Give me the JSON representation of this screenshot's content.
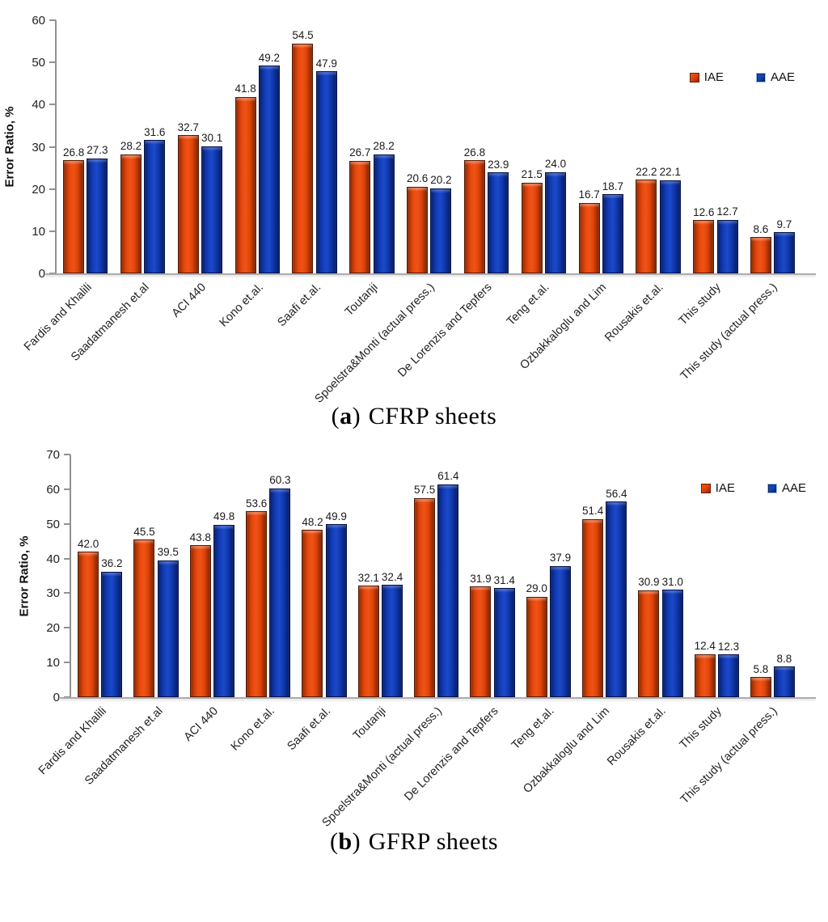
{
  "colors": {
    "iae": "#D8400C",
    "aae": "#1440A8",
    "axis": "#919191",
    "baseline": "#ABABAB",
    "label_text": "#1A1A1A"
  },
  "chart_data": [
    {
      "id": "cfrp",
      "type": "bar",
      "caption": {
        "open": "(",
        "letter": "a",
        "close": ")",
        "title": "CFRP sheets"
      },
      "ylabel": "Error Ratio, %",
      "ylim": [
        0,
        60
      ],
      "yticks": [
        0,
        10,
        20,
        30,
        40,
        50,
        60
      ],
      "grid": false,
      "legend_position": "upper-right",
      "categories": [
        "Fardis and Khalili",
        "Saadatmanesh et.al",
        "ACI 440",
        "Kono et.al.",
        "Saafi et.al.",
        "Toutanji",
        "Spoelstra&Monti (actual press.)",
        "De Lorenzis and Tepfers",
        "Teng et.al.",
        "Ozbakkaloglu and Lim",
        "Rousakis et.al.",
        "This study",
        "This study (actual press.)"
      ],
      "series": [
        {
          "name": "IAE",
          "color": "#D8400C",
          "values": [
            26.8,
            28.2,
            32.7,
            41.8,
            54.5,
            26.7,
            20.6,
            26.8,
            21.5,
            16.7,
            22.2,
            12.6,
            8.6
          ]
        },
        {
          "name": "AAE",
          "color": "#1440A8",
          "values": [
            27.3,
            31.6,
            30.1,
            49.2,
            47.9,
            28.2,
            20.2,
            23.9,
            24.0,
            18.7,
            22.1,
            12.7,
            9.7
          ]
        }
      ]
    },
    {
      "id": "gfrp",
      "type": "bar",
      "caption": {
        "open": "(",
        "letter": "b",
        "close": ")",
        "title": "GFRP sheets"
      },
      "ylabel": "Error Ratio, %",
      "ylim": [
        0,
        70
      ],
      "yticks": [
        0,
        10,
        20,
        30,
        40,
        50,
        60,
        70
      ],
      "grid": false,
      "legend_position": "upper-right",
      "categories": [
        "Fardis and Khalili",
        "Saadatmanesh et.al",
        "ACI 440",
        "Kono et.al.",
        "Saafi et.al.",
        "Toutanji",
        "Spoelstra&Monti (actual press.)",
        "De Lorenzis and Tepfers",
        "Teng et.al.",
        "Ozbakkaloglu and Lim",
        "Rousakis et.al.",
        "This study",
        "This study (actual press.)"
      ],
      "series": [
        {
          "name": "IAE",
          "color": "#D8400C",
          "values": [
            42.0,
            45.5,
            43.8,
            53.6,
            48.2,
            32.1,
            57.5,
            31.9,
            29.0,
            51.4,
            30.9,
            12.4,
            5.8
          ]
        },
        {
          "name": "AAE",
          "color": "#1440A8",
          "values": [
            36.2,
            39.5,
            49.8,
            60.3,
            49.9,
            32.4,
            61.4,
            31.4,
            37.9,
            56.4,
            31.0,
            12.3,
            8.8
          ]
        }
      ]
    }
  ]
}
